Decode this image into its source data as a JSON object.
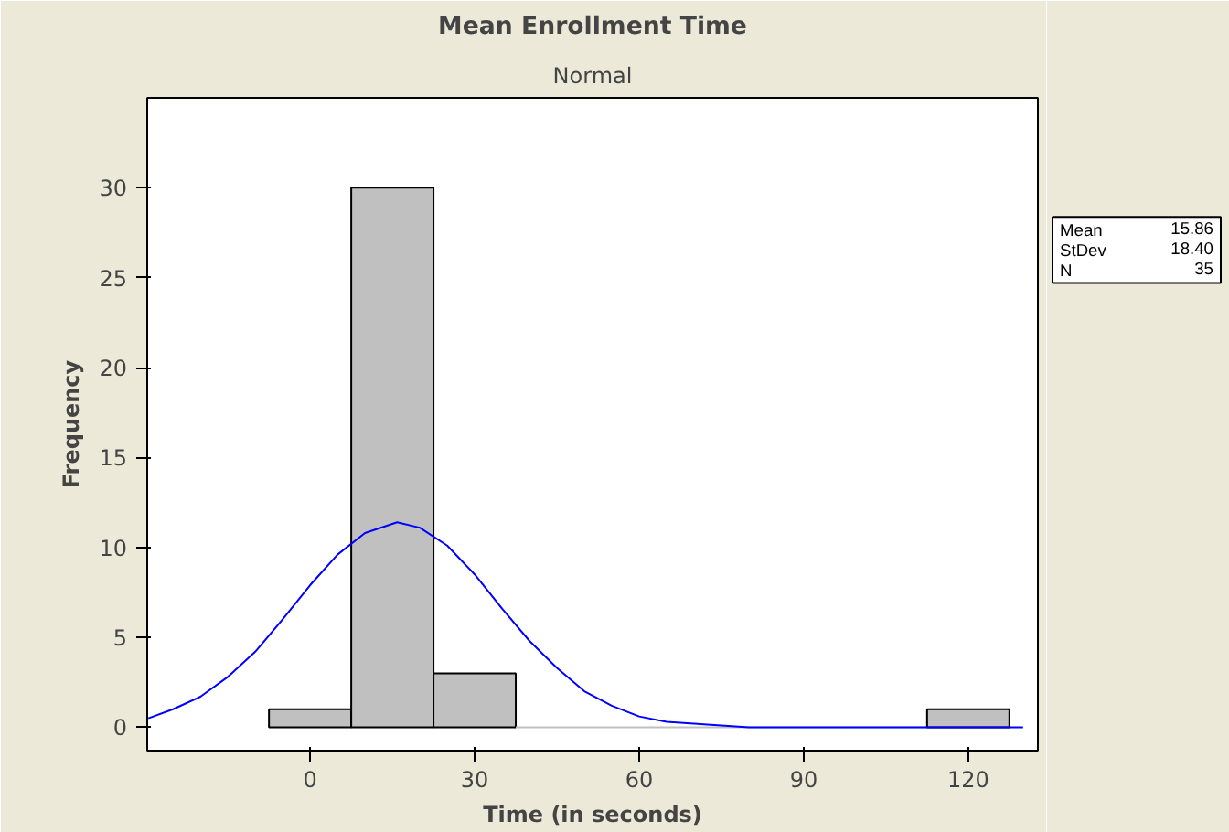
{
  "chart_data": {
    "type": "histogram",
    "title": "Mean Enrollment Time",
    "subtitle": "Normal",
    "xlabel": "Time (in seconds)",
    "ylabel": "Frequency",
    "bins": [
      -7.5,
      7.5,
      22.5,
      37.5,
      52.5,
      67.5,
      82.5,
      97.5,
      112.5,
      127.5
    ],
    "values": [
      1,
      30,
      3,
      0,
      0,
      0,
      0,
      0,
      1
    ],
    "color": "#c0c0c0",
    "series": [
      {
        "type": "line",
        "color": "#0000ff",
        "x": [
          -29.5,
          -25,
          -20,
          -15,
          -10,
          -5,
          0,
          5,
          10,
          15.86,
          20,
          25,
          30,
          35,
          40,
          45,
          50,
          55,
          60,
          65,
          70,
          75,
          80,
          90,
          100,
          110,
          120,
          130
        ],
        "values": [
          0.5,
          1,
          1.7,
          2.8,
          4.2,
          6,
          7.9,
          9.6,
          10.8,
          11.4,
          11.1,
          10.1,
          8.5,
          6.6,
          4.8,
          3.3,
          2,
          1.2,
          0.6,
          0.3,
          0.2,
          0.1,
          0,
          0,
          0,
          0,
          0,
          0
        ]
      }
    ],
    "xlim": [
      -29.7,
      132.7
    ],
    "ylim": [
      -1.3,
      35
    ],
    "xticks": [
      0,
      30,
      60,
      90,
      120
    ],
    "yticks": [
      0,
      5,
      10,
      15,
      20,
      25,
      30
    ],
    "grid": false,
    "annotations": [
      "Mean 15.86",
      "StDev 18.40",
      "N 35"
    ]
  }
}
